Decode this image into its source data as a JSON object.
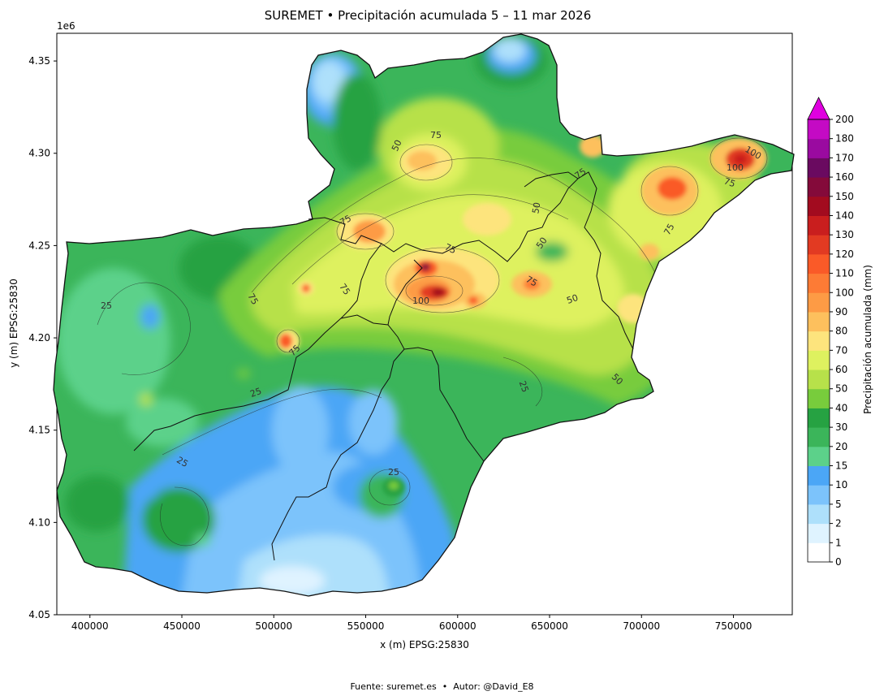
{
  "title": "SUREMET • Precipitación acumulada 5 – 11 mar 2026",
  "footer": {
    "source_label": "Fuente:",
    "source": "suremet.es",
    "separator": "•",
    "author_label": "Autor:",
    "author": "@David_E8"
  },
  "axes": {
    "xlabel": "x (m) EPSG:25830",
    "ylabel": "y (m) EPSG:25830",
    "y_offset_label": "1e6",
    "xlim": [
      382000,
      782000
    ],
    "ylim": [
      4.05,
      4.365
    ],
    "xticks": [
      400000,
      450000,
      500000,
      550000,
      600000,
      650000,
      700000,
      750000
    ],
    "xtick_labels": [
      "400000",
      "450000",
      "500000",
      "550000",
      "600000",
      "650000",
      "700000",
      "750000"
    ],
    "yticks": [
      4.05,
      4.1,
      4.15,
      4.2,
      4.25,
      4.3,
      4.35
    ],
    "ytick_labels": [
      "4.05",
      "4.10",
      "4.15",
      "4.20",
      "4.25",
      "4.30",
      "4.35"
    ]
  },
  "colorbar": {
    "label": "Precipitación acumulada (mm)",
    "extend": "max",
    "extend_color": "#e000e0",
    "levels": [
      "0",
      "1",
      "2",
      "5",
      "10",
      "15",
      "20",
      "30",
      "40",
      "50",
      "60",
      "70",
      "80",
      "90",
      "100",
      "110",
      "120",
      "130",
      "140",
      "150",
      "160",
      "170",
      "180",
      "200"
    ],
    "colors": [
      "#ffffff",
      "#dff3ff",
      "#aee0fb",
      "#7cc3fb",
      "#4ba6f6",
      "#5cd18a",
      "#3bb55a",
      "#26a242",
      "#78cc3c",
      "#b7e14a",
      "#def15f",
      "#fde47d",
      "#fdc05d",
      "#fd9b45",
      "#fd7b35",
      "#fa5a28",
      "#e23a22",
      "#c91e1e",
      "#a20b1f",
      "#840a3a",
      "#6a0a60",
      "#9a0aa0",
      "#c40ac4"
    ]
  },
  "contour_labels": [
    "75",
    "50",
    "75",
    "100",
    "75",
    "75",
    "50",
    "75",
    "50",
    "75",
    "100",
    "75",
    "50",
    "75",
    "25",
    "75",
    "75",
    "25",
    "50",
    "25",
    "25",
    "25",
    "100"
  ],
  "chart_data": {
    "type": "heatmap",
    "title": "SUREMET • Precipitación acumulada 5 – 11 mar 2026",
    "xlabel": "x (m) EPSG:25830",
    "ylabel": "y (m) EPSG:25830",
    "xlim": [
      382000,
      782000
    ],
    "ylim": [
      4050000,
      4365000
    ],
    "colorbar_label": "Precipitación acumulada (mm)",
    "levels_mm": [
      0,
      1,
      2,
      5,
      10,
      15,
      20,
      30,
      40,
      50,
      60,
      70,
      80,
      90,
      100,
      110,
      120,
      130,
      140,
      150,
      160,
      170,
      180,
      200
    ],
    "contour_levels_mm": [
      25,
      50,
      75,
      100
    ],
    "maxima": [
      {
        "x": 588000,
        "y": 4225000,
        "value": 140
      },
      {
        "x": 581000,
        "y": 4238000,
        "value": 140
      },
      {
        "x": 752000,
        "y": 4293000,
        "value": 120
      },
      {
        "x": 718000,
        "y": 4280000,
        "value": 110
      },
      {
        "x": 506000,
        "y": 4198000,
        "value": 110
      },
      {
        "x": 565000,
        "y": 4120000,
        "value": 40
      }
    ],
    "minima": [
      {
        "x": 535000,
        "y": 4065000,
        "value": 1
      },
      {
        "x": 405000,
        "y": 4330000,
        "value": 2
      },
      {
        "x": 628000,
        "y": 4355000,
        "value": 2
      }
    ]
  }
}
